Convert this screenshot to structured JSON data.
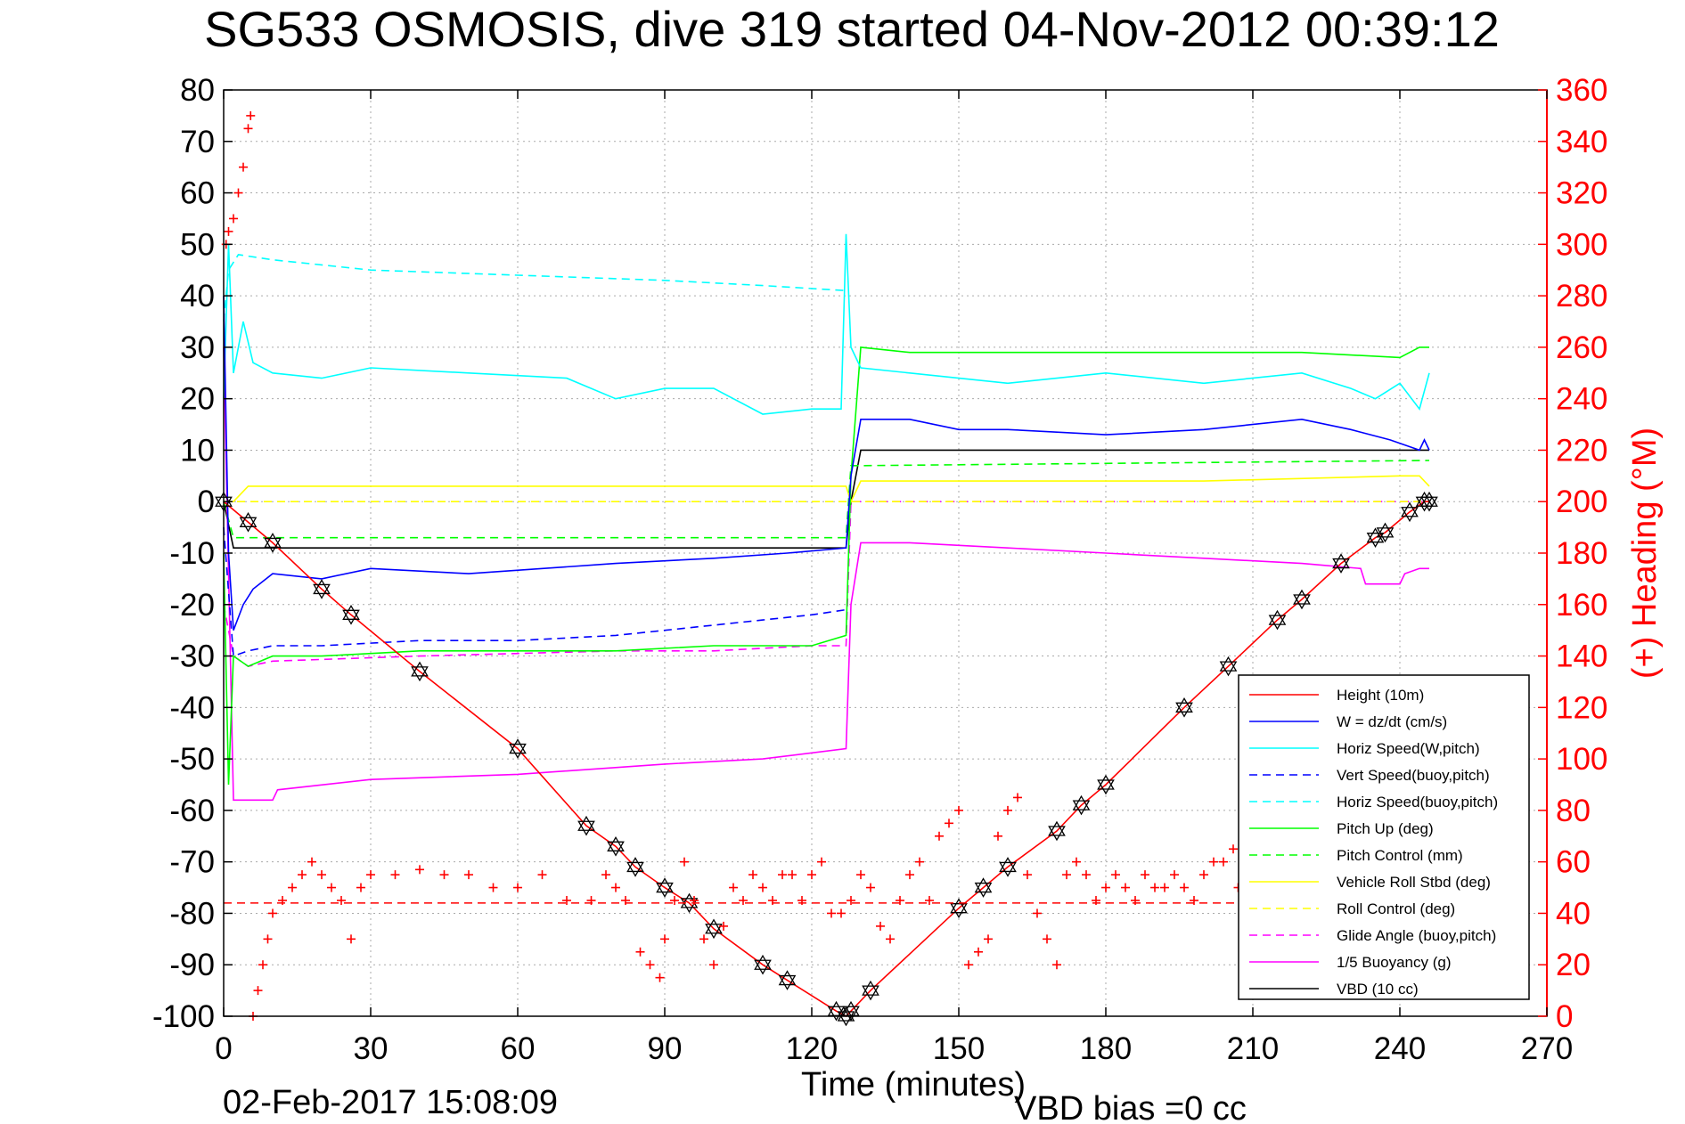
{
  "title": "SG533 OSMOSIS, dive 319 started 04-Nov-2012 00:39:12",
  "footer": {
    "timestamp": "02-Feb-2017 15:08:09",
    "vbd_bias": "VBD bias =0 cc"
  },
  "colors": {
    "background": "#ffffff",
    "axis": "#000000",
    "grid": "#aaaaaa",
    "heading": "#ff0000"
  },
  "chart_data": {
    "type": "line",
    "title": "SG533 OSMOSIS, dive 319 started 04-Nov-2012 00:39:12",
    "xlabel": "Time (minutes)",
    "ylabel": "",
    "y2label": "(+) Heading (°M)",
    "xlim": [
      0,
      270
    ],
    "ylim": [
      -100,
      80
    ],
    "y2lim": [
      0,
      360
    ],
    "xticks": [
      "0",
      "30",
      "60",
      "90",
      "120",
      "150",
      "180",
      "210",
      "240",
      "270"
    ],
    "yticks": [
      "80",
      "70",
      "60",
      "50",
      "40",
      "30",
      "20",
      "10",
      "0",
      "-10",
      "-20",
      "-30",
      "-40",
      "-50",
      "-60",
      "-70",
      "-80",
      "-90",
      "-100"
    ],
    "y2ticks": [
      "360",
      "340",
      "320",
      "300",
      "280",
      "260",
      "240",
      "220",
      "200",
      "180",
      "160",
      "140",
      "120",
      "100",
      "80",
      "60",
      "40",
      "20",
      "0"
    ],
    "grid": true,
    "legend_position": "bottom-right",
    "series": [
      {
        "name": "Height (10m)",
        "color": "#ff0000",
        "style": "solid",
        "markers": "triangle-hexagram",
        "x": [
          0,
          5,
          10,
          20,
          26,
          40,
          60,
          74,
          80,
          84,
          90,
          95,
          100,
          110,
          115,
          125,
          127,
          128,
          132,
          150,
          155,
          160,
          170,
          175,
          180,
          196,
          205,
          215,
          220,
          228,
          235,
          237,
          242,
          245,
          246
        ],
        "y": [
          0,
          -4,
          -8,
          -17,
          -22,
          -33,
          -48,
          -63,
          -67,
          -71,
          -75,
          -78,
          -83,
          -90,
          -93,
          -99,
          -100,
          -99,
          -95,
          -79,
          -75,
          -71,
          -64,
          -59,
          -55,
          -40,
          -32,
          -23,
          -19,
          -12,
          -7,
          -6,
          -2,
          0,
          0
        ]
      },
      {
        "name": "W = dz/dt (cm/s)",
        "color": "#0000ff",
        "style": "solid",
        "x": [
          0,
          1,
          2,
          4,
          6,
          10,
          20,
          30,
          50,
          80,
          100,
          115,
          127,
          128,
          130,
          140,
          150,
          160,
          180,
          200,
          220,
          230,
          238,
          244,
          245,
          246
        ],
        "y": [
          40,
          -10,
          -25,
          -20,
          -17,
          -14,
          -15,
          -13,
          -14,
          -12,
          -11,
          -10,
          -9,
          5,
          16,
          16,
          14,
          14,
          13,
          14,
          16,
          14,
          12,
          10,
          12,
          10
        ]
      },
      {
        "name": "Horiz Speed(W,pitch)",
        "color": "#00ffff",
        "style": "solid",
        "x": [
          0,
          1,
          2,
          4,
          6,
          10,
          20,
          30,
          50,
          70,
          80,
          90,
          100,
          110,
          120,
          126,
          127,
          128,
          130,
          140,
          160,
          180,
          200,
          220,
          230,
          235,
          240,
          244,
          246
        ],
        "y": [
          20,
          50,
          25,
          35,
          27,
          25,
          24,
          26,
          25,
          24,
          20,
          22,
          22,
          17,
          18,
          18,
          52,
          30,
          26,
          25,
          23,
          25,
          23,
          25,
          22,
          20,
          23,
          18,
          25
        ]
      },
      {
        "name": "Vert Speed(buoy,pitch)",
        "color": "#0000ff",
        "style": "dashed",
        "x": [
          0,
          2,
          5,
          10,
          20,
          40,
          60,
          80,
          90,
          100,
          110,
          120,
          127
        ],
        "y": [
          -5,
          -30,
          -29,
          -28,
          -28,
          -27,
          -27,
          -26,
          -25,
          -24,
          -23,
          -22,
          -21
        ]
      },
      {
        "name": "Horiz Speed(buoy,pitch)",
        "color": "#00ffff",
        "style": "dashed",
        "x": [
          0,
          1,
          3,
          10,
          30,
          60,
          90,
          110,
          127
        ],
        "y": [
          35,
          45,
          48,
          47,
          45,
          44,
          43,
          42,
          41
        ]
      },
      {
        "name": "Pitch Up (deg)",
        "color": "#00ff00",
        "style": "solid",
        "x": [
          0,
          1,
          2,
          5,
          10,
          20,
          40,
          60,
          80,
          100,
          120,
          127,
          128,
          130,
          140,
          160,
          180,
          200,
          220,
          240,
          244,
          246
        ],
        "y": [
          -10,
          -55,
          -30,
          -32,
          -30,
          -30,
          -29,
          -29,
          -29,
          -28,
          -28,
          -26,
          5,
          30,
          29,
          29,
          29,
          29,
          29,
          28,
          30,
          30
        ]
      },
      {
        "name": "Pitch Control (mm)",
        "color": "#00ff00",
        "style": "dashed",
        "x": [
          0,
          2,
          10,
          40,
          80,
          127,
          128,
          130,
          246
        ],
        "y": [
          0,
          -7,
          -7,
          -7,
          -7,
          -7,
          7,
          7,
          8
        ]
      },
      {
        "name": "Vehicle Roll Stbd (deg)",
        "color": "#ffff00",
        "style": "solid",
        "x": [
          0,
          2,
          5,
          10,
          30,
          60,
          90,
          127,
          128,
          130,
          160,
          200,
          240,
          244,
          246
        ],
        "y": [
          0,
          0,
          3,
          3,
          3,
          3,
          3,
          3,
          0,
          4,
          4,
          4,
          5,
          5,
          3
        ]
      },
      {
        "name": "Roll Control (deg)",
        "color": "#ffff00",
        "style": "dashed",
        "x": [
          0,
          246
        ],
        "y": [
          0,
          0
        ]
      },
      {
        "name": "Glide Angle (buoy,pitch)",
        "color": "#ff00ff",
        "style": "dashed",
        "x": [
          0,
          2,
          5,
          10,
          40,
          80,
          100,
          120,
          127,
          128,
          246
        ],
        "y": [
          -20,
          -30,
          -32,
          -31,
          -30,
          -29,
          -29,
          -28,
          -28,
          0,
          0
        ]
      },
      {
        "name": "1/5 Buoyancy (g)",
        "color": "#ff00ff",
        "style": "solid",
        "x": [
          0,
          2,
          4,
          10,
          11,
          30,
          60,
          90,
          110,
          127,
          128,
          130,
          140,
          160,
          180,
          200,
          220,
          232,
          233,
          240,
          241,
          244,
          246
        ],
        "y": [
          30,
          -58,
          -58,
          -58,
          -56,
          -54,
          -53,
          -51,
          -50,
          -48,
          -20,
          -8,
          -8,
          -9,
          -10,
          -11,
          -12,
          -13,
          -16,
          -16,
          -14,
          -13,
          -13
        ]
      },
      {
        "name": "VBD (10 cc)",
        "color": "#000000",
        "style": "solid",
        "x": [
          0,
          2,
          3,
          127,
          128,
          130,
          246
        ],
        "y": [
          0,
          -9,
          -9,
          -9,
          0,
          10,
          10
        ]
      }
    ],
    "heading": {
      "axis": "right",
      "color": "#ff0000",
      "marker": "+",
      "x": [
        0.5,
        1,
        2,
        3,
        4,
        5,
        5.5,
        6,
        7,
        8,
        9,
        10,
        12,
        14,
        16,
        18,
        20,
        22,
        24,
        26,
        28,
        30,
        35,
        40,
        45,
        50,
        55,
        60,
        65,
        70,
        75,
        78,
        80,
        82,
        85,
        87,
        89,
        90,
        92,
        94,
        96,
        98,
        100,
        102,
        104,
        106,
        108,
        110,
        112,
        114,
        116,
        118,
        120,
        122,
        124,
        126,
        128,
        130,
        132,
        134,
        136,
        138,
        140,
        142,
        144,
        146,
        148,
        150,
        152,
        154,
        156,
        158,
        160,
        162,
        164,
        166,
        168,
        170,
        172,
        174,
        176,
        178,
        180,
        182,
        184,
        186,
        188,
        190,
        192,
        194,
        196,
        198,
        200,
        202,
        204,
        206,
        207
      ],
      "y": [
        300,
        305,
        310,
        320,
        330,
        345,
        350,
        0,
        10,
        20,
        30,
        40,
        45,
        50,
        55,
        60,
        55,
        50,
        45,
        30,
        50,
        55,
        55,
        57,
        55,
        55,
        50,
        50,
        55,
        45,
        45,
        55,
        50,
        45,
        25,
        20,
        15,
        30,
        45,
        60,
        45,
        30,
        20,
        35,
        50,
        45,
        55,
        50,
        45,
        55,
        55,
        45,
        55,
        60,
        40,
        40,
        45,
        55,
        50,
        35,
        30,
        45,
        55,
        60,
        45,
        70,
        75,
        80,
        20,
        25,
        30,
        70,
        80,
        85,
        55,
        40,
        30,
        20,
        55,
        60,
        55,
        45,
        50,
        55,
        50,
        45,
        55,
        50,
        50,
        55,
        50,
        45,
        55,
        60,
        60,
        65,
        50
      ]
    },
    "heading_mean": 44
  }
}
